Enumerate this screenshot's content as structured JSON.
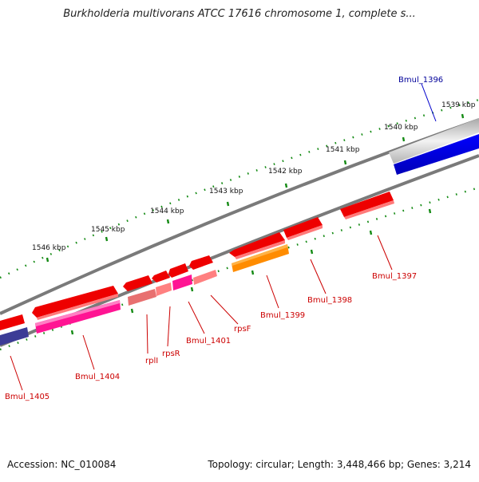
{
  "header": {
    "title": "Burkholderia multivorans ATCC 17616 chromosome 1, complete s..."
  },
  "footer": {
    "accession": "Accession: NC_010084",
    "summary": "Topology: circular; Length: 3,448,466 bp; Genes: 3,214"
  },
  "colors": {
    "forward_gene": "#ee0000",
    "forward_gene_shade": "#ff6a6a",
    "rrna": "#ff1493",
    "rrna_shade": "#ff88c8",
    "trna": "#ff7f7f",
    "reverse_gene": "#ff8c00",
    "highlight_gene": "#0000dd",
    "pseudo_gene": "#3c3c96",
    "backbone": "#808080",
    "ticks": "#138a13",
    "label_red": "#cc0000",
    "label_blue": "#000099"
  },
  "scale_labels": [
    "1539 kbp",
    "1540 kbp",
    "1541 kbp",
    "1542 kbp",
    "1543 kbp",
    "1544 kbp",
    "1545 kbp",
    "1546 kbp"
  ],
  "gene_labels": [
    "Bmul_1396",
    "Bmul_1397",
    "Bmul_1398",
    "Bmul_1399",
    "rpsF",
    "Bmul_1401",
    "rpsR",
    "rplI",
    "Bmul_1404",
    "Bmul_1405"
  ]
}
